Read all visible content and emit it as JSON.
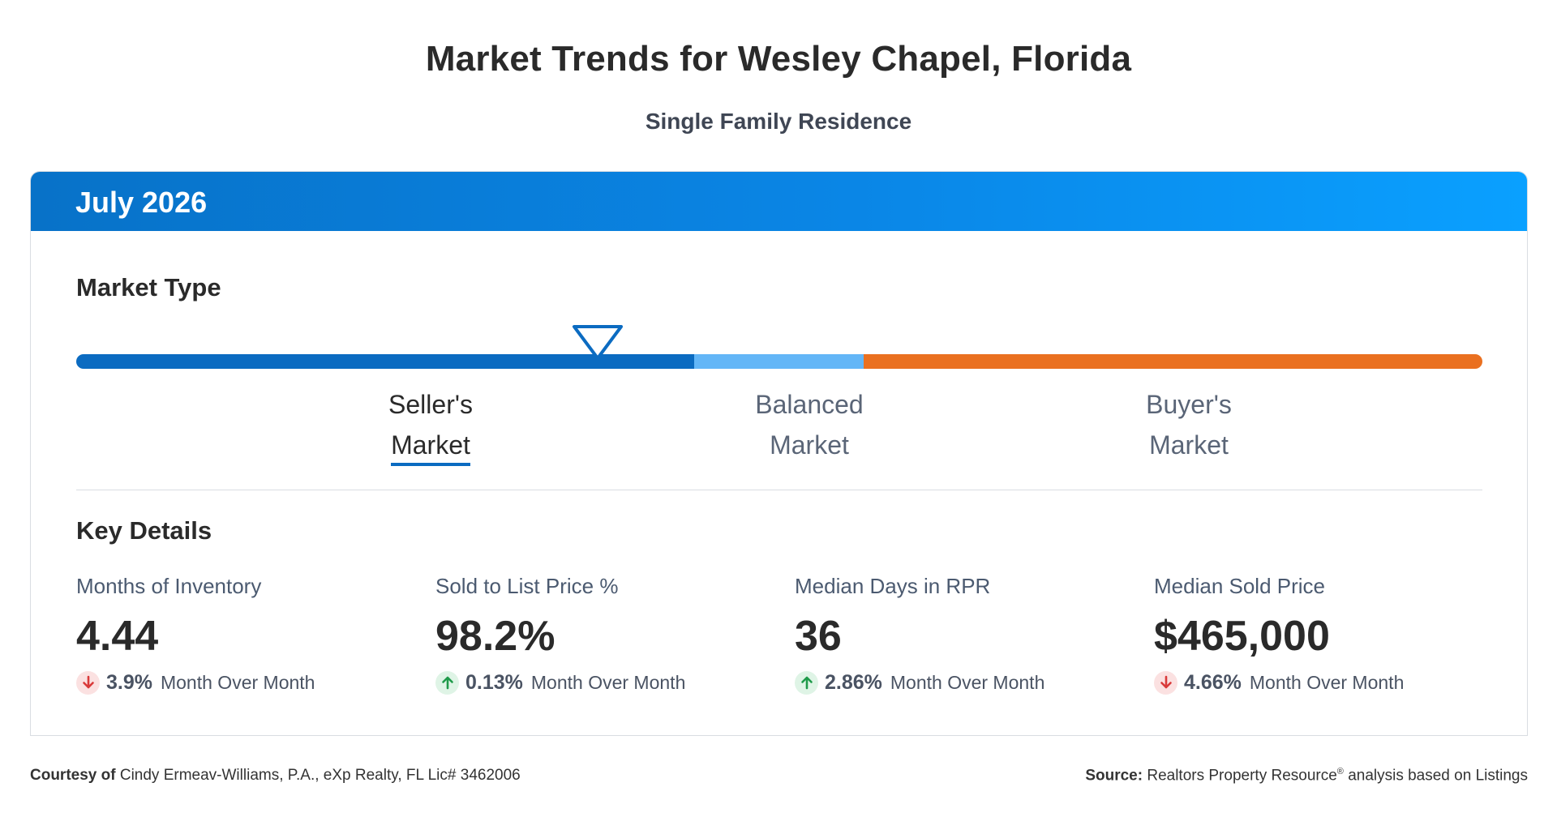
{
  "header": {
    "title": "Market Trends for Wesley Chapel, Florida",
    "subtitle": "Single Family Residence"
  },
  "card": {
    "period": "July 2026",
    "market_type": {
      "title": "Market Type",
      "labels": {
        "seller": [
          "Seller's",
          "Market"
        ],
        "balanced": [
          "Balanced",
          "Market"
        ],
        "buyer": [
          "Buyer's",
          "Market"
        ]
      },
      "active": "seller",
      "indicator_position": 0.37,
      "colors": {
        "seller": "#0b6bc1",
        "balanced": "#63b6f7",
        "buyer": "#ea7020"
      }
    },
    "key_details": {
      "title": "Key Details",
      "metrics": [
        {
          "name": "Months of Inventory",
          "value": "4.44",
          "change": "3.9%",
          "direction": "down",
          "change_label": "Month Over Month"
        },
        {
          "name": "Sold to List Price %",
          "value": "98.2%",
          "change": "0.13%",
          "direction": "up",
          "change_label": "Month Over Month"
        },
        {
          "name": "Median Days in RPR",
          "value": "36",
          "change": "2.86%",
          "direction": "up",
          "change_label": "Month Over Month"
        },
        {
          "name": "Median Sold Price",
          "value": "$465,000",
          "change": "4.66%",
          "direction": "down",
          "change_label": "Month Over Month"
        }
      ]
    }
  },
  "footer": {
    "courtesy_label": "Courtesy of",
    "courtesy_text": "Cindy Ermeav-Williams, P.A., eXp Realty, FL Lic# 3462006",
    "source_label": "Source:",
    "source_text_a": "Realtors Property Resource",
    "source_reg": "®",
    "source_text_b": "analysis based on Listings"
  }
}
